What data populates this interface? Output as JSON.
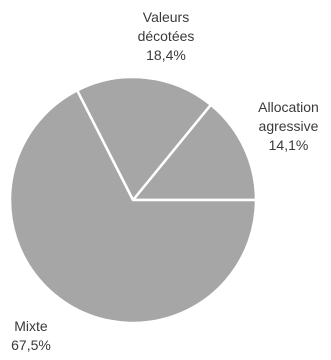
{
  "chart_data": {
    "type": "pie",
    "title": "",
    "slices": [
      {
        "label_lines": [
          "Allocation",
          "agressive"
        ],
        "value_label": "14,1%",
        "value": 14.1
      },
      {
        "label_lines": [
          "Valeurs",
          "décotées"
        ],
        "value_label": "18,4%",
        "value": 18.4
      },
      {
        "label_lines": [
          "Mixte"
        ],
        "value_label": "67,5%",
        "value": 67.5
      }
    ],
    "colors": {
      "fill": "#a6a6a6",
      "border": "#ffffff"
    },
    "start": "3 o'clock, counter-clockwise",
    "legend": "none"
  }
}
